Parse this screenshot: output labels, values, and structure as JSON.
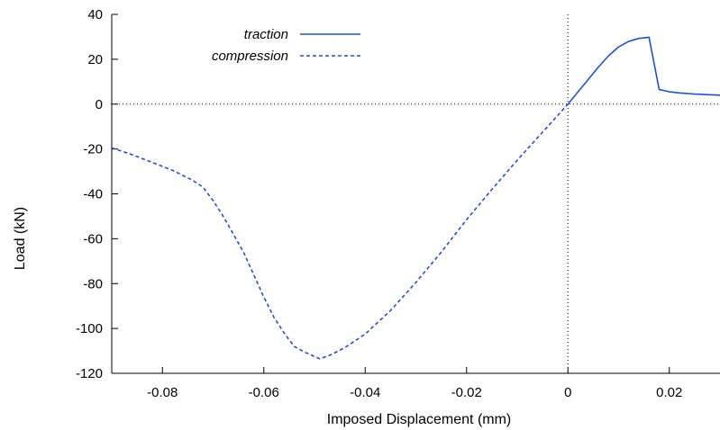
{
  "chart_data": {
    "type": "line",
    "xlabel": "Imposed Displacement (mm)",
    "ylabel": "Load (kN)",
    "xlim": [
      -0.09,
      0.03
    ],
    "ylim": [
      -120,
      40
    ],
    "x_ticks": [
      {
        "value": -0.08,
        "label": "-0.08"
      },
      {
        "value": -0.06,
        "label": "-0.06"
      },
      {
        "value": -0.04,
        "label": "-0.04"
      },
      {
        "value": -0.02,
        "label": "-0.02"
      },
      {
        "value": 0,
        "label": "0"
      },
      {
        "value": 0.02,
        "label": "0.02"
      }
    ],
    "y_ticks": [
      {
        "value": 40,
        "label": "40"
      },
      {
        "value": 20,
        "label": "20"
      },
      {
        "value": 0,
        "label": "0"
      },
      {
        "value": -20,
        "label": "-20"
      },
      {
        "value": -40,
        "label": "-40"
      },
      {
        "value": -60,
        "label": "-60"
      },
      {
        "value": -80,
        "label": "-80"
      },
      {
        "value": -100,
        "label": "-100"
      },
      {
        "value": -120,
        "label": "-120"
      }
    ],
    "zero_lines": true,
    "legend_position": "top-left",
    "series": [
      {
        "name": "traction",
        "style": "solid",
        "color": "#1f4fe0",
        "points": [
          [
            0,
            0
          ],
          [
            0.002,
            5.5
          ],
          [
            0.004,
            11
          ],
          [
            0.006,
            16.5
          ],
          [
            0.008,
            21.5
          ],
          [
            0.01,
            25.5
          ],
          [
            0.012,
            28
          ],
          [
            0.014,
            29.3
          ],
          [
            0.016,
            29.8
          ],
          [
            0.018,
            6.5
          ],
          [
            0.02,
            5.5
          ],
          [
            0.022,
            5
          ],
          [
            0.025,
            4.5
          ],
          [
            0.028,
            4.2
          ],
          [
            0.03,
            4
          ]
        ]
      },
      {
        "name": "compression",
        "style": "dashed",
        "color": "#1f4fe0",
        "points": [
          [
            -0.09,
            -19.5
          ],
          [
            -0.086,
            -22.5
          ],
          [
            -0.082,
            -26
          ],
          [
            -0.078,
            -29.5
          ],
          [
            -0.074,
            -34
          ],
          [
            -0.072,
            -37
          ],
          [
            -0.07,
            -43
          ],
          [
            -0.068,
            -50
          ],
          [
            -0.066,
            -58
          ],
          [
            -0.064,
            -66
          ],
          [
            -0.062,
            -76
          ],
          [
            -0.06,
            -86
          ],
          [
            -0.058,
            -95
          ],
          [
            -0.056,
            -102
          ],
          [
            -0.054,
            -108
          ],
          [
            -0.052,
            -110.5
          ],
          [
            -0.05,
            -112.5
          ],
          [
            -0.049,
            -113.5
          ],
          [
            -0.047,
            -112
          ],
          [
            -0.044,
            -108.5
          ],
          [
            -0.04,
            -102.5
          ],
          [
            -0.035,
            -92
          ],
          [
            -0.03,
            -79.5
          ],
          [
            -0.025,
            -66
          ],
          [
            -0.02,
            -51.5
          ],
          [
            -0.015,
            -38
          ],
          [
            -0.01,
            -25
          ],
          [
            -0.005,
            -12.5
          ],
          [
            0,
            0
          ]
        ]
      }
    ]
  }
}
